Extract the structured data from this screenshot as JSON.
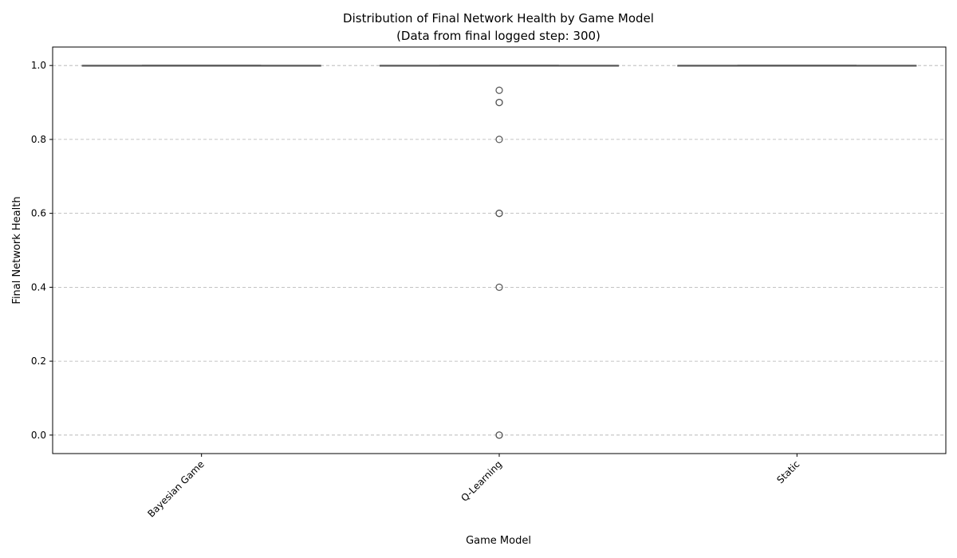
{
  "chart_data": {
    "type": "box",
    "title": "Distribution of Final Network Health by Game Model",
    "subtitle": "(Data from final logged step: 300)",
    "xlabel": "Game Model",
    "ylabel": "Final Network Health",
    "categories": [
      "Bayesian Game",
      "Q-Learning",
      "Static"
    ],
    "ylim": [
      -0.05,
      1.05
    ],
    "yticks": [
      0.0,
      0.2,
      0.4,
      0.6,
      0.8,
      1.0
    ],
    "ytick_labels": [
      "0.0",
      "0.2",
      "0.4",
      "0.6",
      "0.8",
      "1.0"
    ],
    "grid": "y-dashed",
    "box_color": "#555555",
    "boxes": [
      {
        "category": "Bayesian Game",
        "q1": 1.0,
        "median": 1.0,
        "q3": 1.0,
        "whisker_low": 1.0,
        "whisker_high": 1.0,
        "outliers": []
      },
      {
        "category": "Q-Learning",
        "q1": 1.0,
        "median": 1.0,
        "q3": 1.0,
        "whisker_low": 1.0,
        "whisker_high": 1.0,
        "outliers": [
          0.933,
          0.9,
          0.9,
          0.8,
          0.6,
          0.6,
          0.4,
          0.0,
          0.0
        ]
      },
      {
        "category": "Static",
        "q1": 1.0,
        "median": 1.0,
        "q3": 1.0,
        "whisker_low": 1.0,
        "whisker_high": 1.0,
        "outliers": []
      }
    ]
  }
}
